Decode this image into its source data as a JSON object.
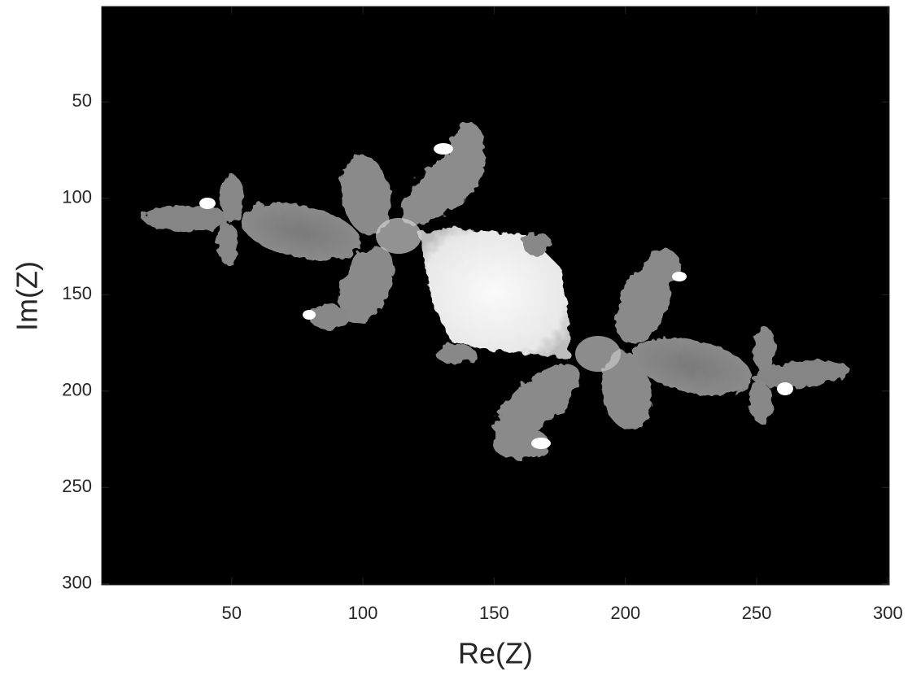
{
  "chart_data": {
    "type": "image",
    "xlabel": "Re(Z)",
    "ylabel": "Im(Z)",
    "xlim": [
      0.5,
      300.5
    ],
    "ylim": [
      0.5,
      300.5
    ],
    "ydir": "reverse",
    "xticks": [
      50,
      100,
      150,
      200,
      250,
      300
    ],
    "yticks": [
      50,
      100,
      150,
      200,
      250,
      300
    ]
  }
}
